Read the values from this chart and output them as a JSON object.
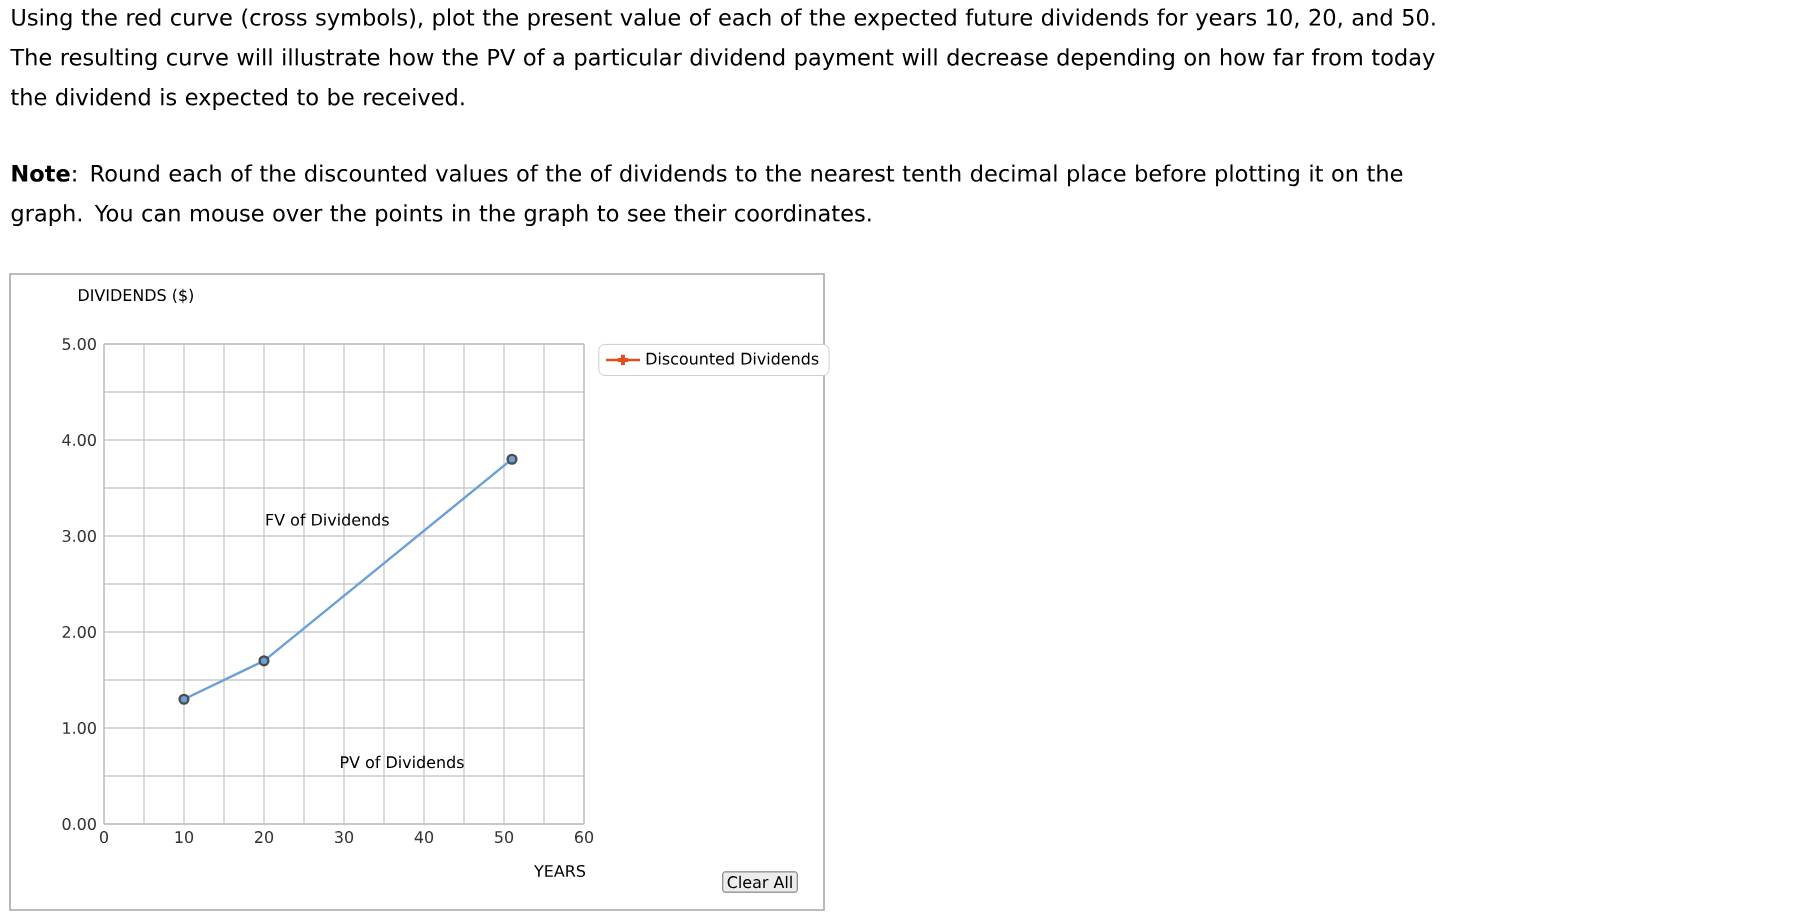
{
  "chart_data": {
    "type": "line",
    "annotations": [
      "Using the red curve (cross symbols), plot the present value of each of the expected future dividends for years 10, 20, and 50. The resulting curve will illustrate how the PV of a particular dividend payment will decrease depending on how far from today the dividend is expected to be received.",
      "**Note**: Round each of the discounted values of the of dividends to the nearest tenth decimal place before plotting it on the graph. You can mouse over the points in the graph to see their coordinates.",
      "PV of Dividends",
      "Clear All"
    ],
    "xlabel": "YEARS",
    "ylabel": "DIVIDENDS ($)",
    "xlim": [
      0,
      60
    ],
    "xticks": [
      0,
      10,
      20,
      30,
      40,
      50,
      60
    ],
    "ylim": [
      0,
      5
    ],
    "yticks": [
      {
        "value": 0,
        "label": "0.00"
      },
      {
        "value": 1,
        "label": "1.00"
      },
      {
        "value": 2,
        "label": "2.00"
      },
      {
        "value": 3,
        "label": "3.00"
      },
      {
        "value": 4,
        "label": "4.00"
      },
      {
        "value": 5,
        "label": "5.00"
      }
    ],
    "grid": true,
    "legend": "top right",
    "series": [
      {
        "name": "FV of Dividends",
        "color": "#6a9fd8",
        "marker": "circle",
        "x": [
          10,
          20,
          51
        ],
        "values": [
          1.3,
          1.7,
          3.8
        ]
      },
      {
        "name": "Discounted Dividends",
        "color": "#e0501e",
        "marker": "cross"
      }
    ]
  }
}
